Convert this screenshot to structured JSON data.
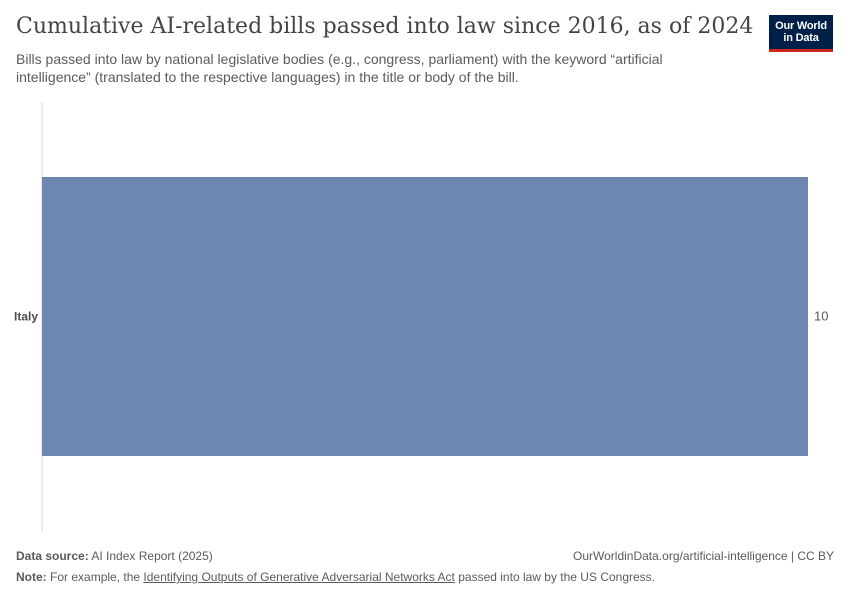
{
  "header": {
    "title": "Cumulative AI-related bills passed into law since 2016, as of 2024",
    "subtitle": "Bills passed into law by national legislative bodies (e.g., congress, parliament) with the keyword “artificial intelligence” (translated to the respective languages) in the title or body of the bill."
  },
  "logo": {
    "line1": "Our World",
    "line2": "in Data",
    "bg_color": "#002147",
    "accent_color": "#ce261e"
  },
  "chart_data": {
    "type": "bar",
    "orientation": "horizontal",
    "categories": [
      "Italy"
    ],
    "values": [
      10
    ],
    "value_labels": [
      "10"
    ],
    "xlim": [
      0,
      10
    ],
    "bar_color": "#6d87b0",
    "grid": false,
    "legend": "none"
  },
  "footer": {
    "source_label": "Data source:",
    "source_text": "AI Index Report (2025)",
    "url_text": "OurWorldinData.org/artificial-intelligence | CC BY",
    "note_label": "Note:",
    "note_prefix": "For example, the",
    "note_link": "Identifying Outputs of Generative Adversarial Networks Act",
    "note_suffix": "passed into law by the US Congress."
  }
}
